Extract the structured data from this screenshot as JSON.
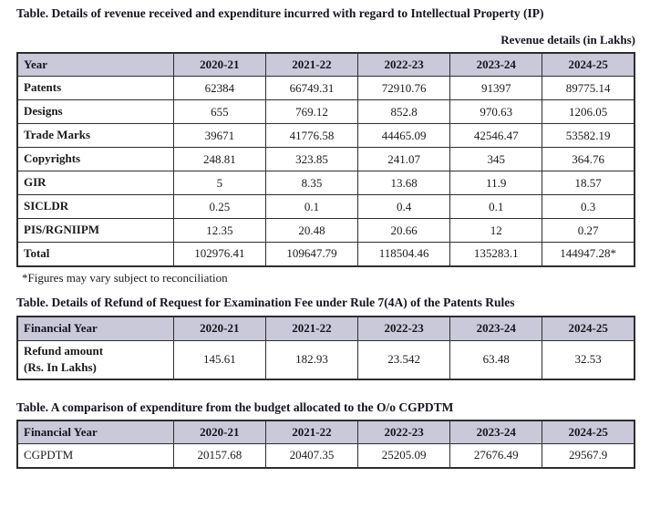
{
  "colors": {
    "header_bg": "#c9c9d9",
    "border": "#2e2e2e",
    "text": "#1a1a1a"
  },
  "table1": {
    "title": "Table. Details of revenue received and expenditure incurred with regard to Intellectual Property (IP)",
    "note_right": "Revenue details (in Lakhs)",
    "columns": [
      "Year",
      "2020-21",
      "2021-22",
      "2022-23",
      "2023-24",
      "2024-25"
    ],
    "label_bold": true,
    "rows": [
      {
        "label": "Patents",
        "values": [
          "62384",
          "66749.31",
          "72910.76",
          "91397",
          "89775.14"
        ]
      },
      {
        "label": "Designs",
        "values": [
          "655",
          "769.12",
          "852.8",
          "970.63",
          "1206.05"
        ]
      },
      {
        "label": "Trade Marks",
        "values": [
          "39671",
          "41776.58",
          "44465.09",
          "42546.47",
          "53582.19"
        ]
      },
      {
        "label": "Copyrights",
        "values": [
          "248.81",
          "323.85",
          "241.07",
          "345",
          "364.76"
        ]
      },
      {
        "label": "GIR",
        "values": [
          "5",
          "8.35",
          "13.68",
          "11.9",
          "18.57"
        ]
      },
      {
        "label": "SICLDR",
        "values": [
          "0.25",
          "0.1",
          "0.4",
          "0.1",
          "0.3"
        ]
      },
      {
        "label": "PIS/RGNIIPM",
        "values": [
          "12.35",
          "20.48",
          "20.66",
          "12",
          "0.27"
        ]
      },
      {
        "label": "Total",
        "values": [
          "102976.41",
          "109647.79",
          "118504.46",
          "135283.1",
          "144947.28*"
        ]
      }
    ],
    "footnote": "*Figures may vary subject to reconciliation"
  },
  "table2": {
    "title": "Table. Details of Refund of Request for Examination Fee under Rule 7(4A) of the Patents Rules",
    "columns": [
      "Financial Year",
      "2020-21",
      "2021-22",
      "2022-23",
      "2023-24",
      "2024-25"
    ],
    "label_bold": true,
    "rows": [
      {
        "label": "Refund amount\n(Rs. In Lakhs)",
        "values": [
          "145.61",
          "182.93",
          "23.542",
          "63.48",
          "32.53"
        ]
      }
    ]
  },
  "table3": {
    "title": "Table. A comparison of expenditure from the budget allocated to the O/o CGPDTM",
    "columns": [
      "Financial Year",
      "2020-21",
      "2021-22",
      "2022-23",
      "2023-24",
      "2024-25"
    ],
    "label_bold": false,
    "rows": [
      {
        "label": "CGPDTM",
        "values": [
          "20157.68",
          "20407.35",
          "25205.09",
          "27676.49",
          "29567.9"
        ]
      }
    ]
  }
}
